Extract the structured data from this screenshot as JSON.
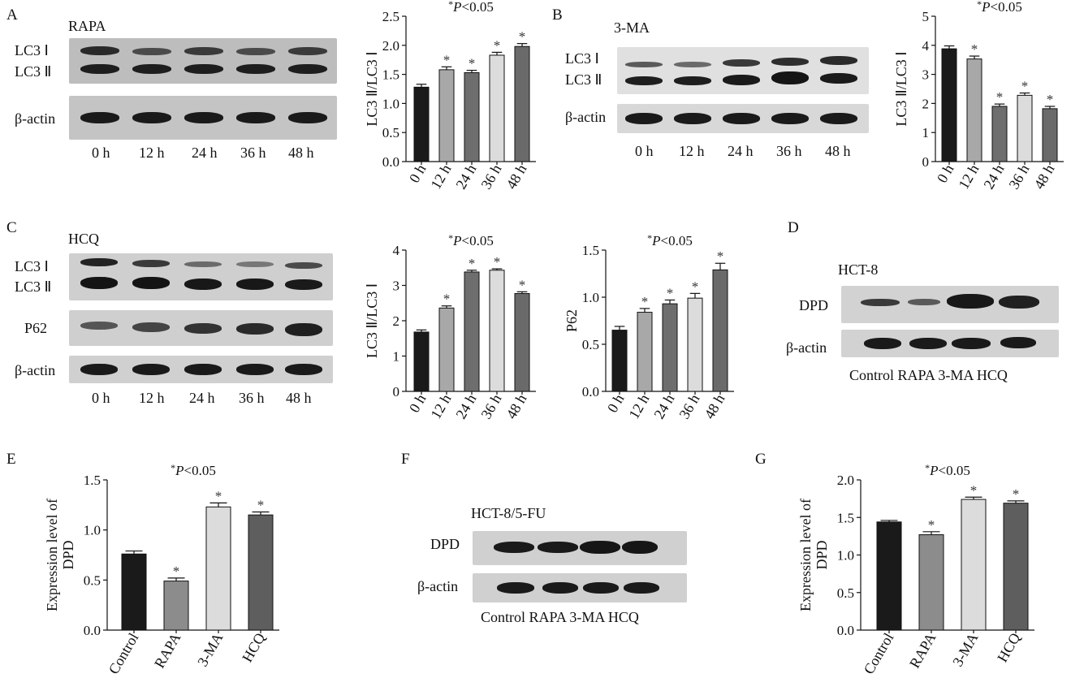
{
  "panels": {
    "A": {
      "letter": "A",
      "treatment": "RAPA",
      "blot_labels": [
        "LC3 Ⅰ",
        "LC3 Ⅱ",
        "β-actin"
      ],
      "lanes": [
        "0 h",
        "12 h",
        "24 h",
        "36 h",
        "48 h"
      ]
    },
    "B": {
      "letter": "B",
      "treatment": "3-MA",
      "blot_labels": [
        "LC3 Ⅰ",
        "LC3 Ⅱ",
        "β-actin"
      ],
      "lanes": [
        "0 h",
        "12 h",
        "24 h",
        "36 h",
        "48 h"
      ]
    },
    "C": {
      "letter": "C",
      "treatment": "HCQ",
      "blot_labels": [
        "LC3 Ⅰ",
        "LC3 Ⅱ",
        "P62",
        "β-actin"
      ],
      "lanes": [
        "0 h",
        "12 h",
        "24 h",
        "36 h",
        "48 h"
      ]
    },
    "D": {
      "letter": "D",
      "cell_line": "HCT-8",
      "blot_labels": [
        "DPD",
        "β-actin"
      ],
      "lanes": "Control RAPA 3-MA  HCQ"
    },
    "E": {
      "letter": "E"
    },
    "F": {
      "letter": "F",
      "cell_line": "HCT-8/5-FU",
      "blot_labels": [
        "DPD",
        "β-actin"
      ],
      "lanes": "Control RAPA 3-MA  HCQ"
    },
    "G": {
      "letter": "G"
    }
  },
  "significance_text": "P<0.05",
  "significance_star": "*",
  "colors": {
    "black": "#1a1a1a",
    "midgray": "#8c8c8c",
    "darkgray": "#5e5e5e",
    "lightgray": "#dedede"
  },
  "chart_data": [
    {
      "id": "A-chart",
      "type": "bar",
      "categories": [
        "0 h",
        "12 h",
        "24 h",
        "36 h",
        "48 h"
      ],
      "values": [
        1.28,
        1.58,
        1.53,
        1.83,
        1.98
      ],
      "errors": [
        0.05,
        0.05,
        0.04,
        0.05,
        0.05
      ],
      "significant": [
        false,
        true,
        true,
        true,
        true
      ],
      "colors": [
        "#1a1a1a",
        "#a8a8a8",
        "#6e6e6e",
        "#dcdcdc",
        "#6a6a6a"
      ],
      "ylabel": "LC3 Ⅱ/LC3 Ⅰ",
      "ylim": [
        0,
        2.5
      ],
      "yticks": [
        "0.0",
        "0.5",
        "1.0",
        "1.5",
        "2.0",
        "2.5"
      ],
      "annotation": "P<0.05"
    },
    {
      "id": "B-chart",
      "type": "bar",
      "categories": [
        "0 h",
        "12 h",
        "24 h",
        "36 h",
        "48 h"
      ],
      "values": [
        3.88,
        3.53,
        1.9,
        2.28,
        1.82
      ],
      "errors": [
        0.1,
        0.1,
        0.08,
        0.08,
        0.08
      ],
      "significant": [
        false,
        true,
        true,
        true,
        true
      ],
      "colors": [
        "#1a1a1a",
        "#a8a8a8",
        "#6e6e6e",
        "#dcdcdc",
        "#6a6a6a"
      ],
      "ylabel": "LC3 Ⅱ/LC3 Ⅰ",
      "ylim": [
        0,
        5
      ],
      "yticks": [
        "0",
        "1",
        "2",
        "3",
        "4",
        "5"
      ],
      "annotation": "P<0.05"
    },
    {
      "id": "C-chart1",
      "type": "bar",
      "categories": [
        "0 h",
        "12 h",
        "24 h",
        "36 h",
        "48 h"
      ],
      "values": [
        1.68,
        2.36,
        3.38,
        3.43,
        2.77
      ],
      "errors": [
        0.06,
        0.06,
        0.05,
        0.04,
        0.05
      ],
      "significant": [
        false,
        true,
        true,
        true,
        true
      ],
      "colors": [
        "#1a1a1a",
        "#a8a8a8",
        "#6e6e6e",
        "#dcdcdc",
        "#6a6a6a"
      ],
      "ylabel": "LC3 Ⅱ/LC3 Ⅰ",
      "ylim": [
        0,
        4
      ],
      "yticks": [
        "0",
        "1",
        "2",
        "3",
        "4"
      ],
      "annotation": "P<0.05"
    },
    {
      "id": "C-chart2",
      "type": "bar",
      "categories": [
        "0 h",
        "12 h",
        "24 h",
        "36 h",
        "48 h"
      ],
      "values": [
        0.65,
        0.84,
        0.93,
        0.99,
        1.29
      ],
      "errors": [
        0.04,
        0.04,
        0.04,
        0.05,
        0.07
      ],
      "significant": [
        false,
        true,
        true,
        true,
        true
      ],
      "colors": [
        "#1a1a1a",
        "#a8a8a8",
        "#6e6e6e",
        "#dcdcdc",
        "#6a6a6a"
      ],
      "ylabel": "P62",
      "ylim": [
        0,
        1.5
      ],
      "yticks": [
        "0.0",
        "0.5",
        "1.0",
        "1.5"
      ],
      "annotation": "P<0.05"
    },
    {
      "id": "E-chart",
      "type": "bar",
      "categories": [
        "Control",
        "RAPA",
        "3-MA",
        "HCQ"
      ],
      "values": [
        0.76,
        0.49,
        1.23,
        1.15
      ],
      "errors": [
        0.03,
        0.03,
        0.04,
        0.03
      ],
      "significant": [
        false,
        true,
        true,
        true
      ],
      "colors": [
        "#1a1a1a",
        "#8c8c8c",
        "#dcdcdc",
        "#5e5e5e"
      ],
      "ylabel": "Expression level of DPD",
      "ylim": [
        0,
        1.5
      ],
      "yticks": [
        "0.0",
        "0.5",
        "1.0",
        "1.5"
      ],
      "annotation": "P<0.05"
    },
    {
      "id": "G-chart",
      "type": "bar",
      "categories": [
        "Control",
        "RAPA",
        "3-MA",
        "HCQ"
      ],
      "values": [
        1.44,
        1.27,
        1.74,
        1.69
      ],
      "errors": [
        0.02,
        0.04,
        0.03,
        0.03
      ],
      "significant": [
        false,
        true,
        true,
        true
      ],
      "colors": [
        "#1a1a1a",
        "#8c8c8c",
        "#dcdcdc",
        "#5e5e5e"
      ],
      "ylabel": "Expression level of DPD",
      "ylim": [
        0,
        2.0
      ],
      "yticks": [
        "0.0",
        "0.5",
        "1.0",
        "1.5",
        "2.0"
      ],
      "annotation": "P<0.05"
    }
  ]
}
